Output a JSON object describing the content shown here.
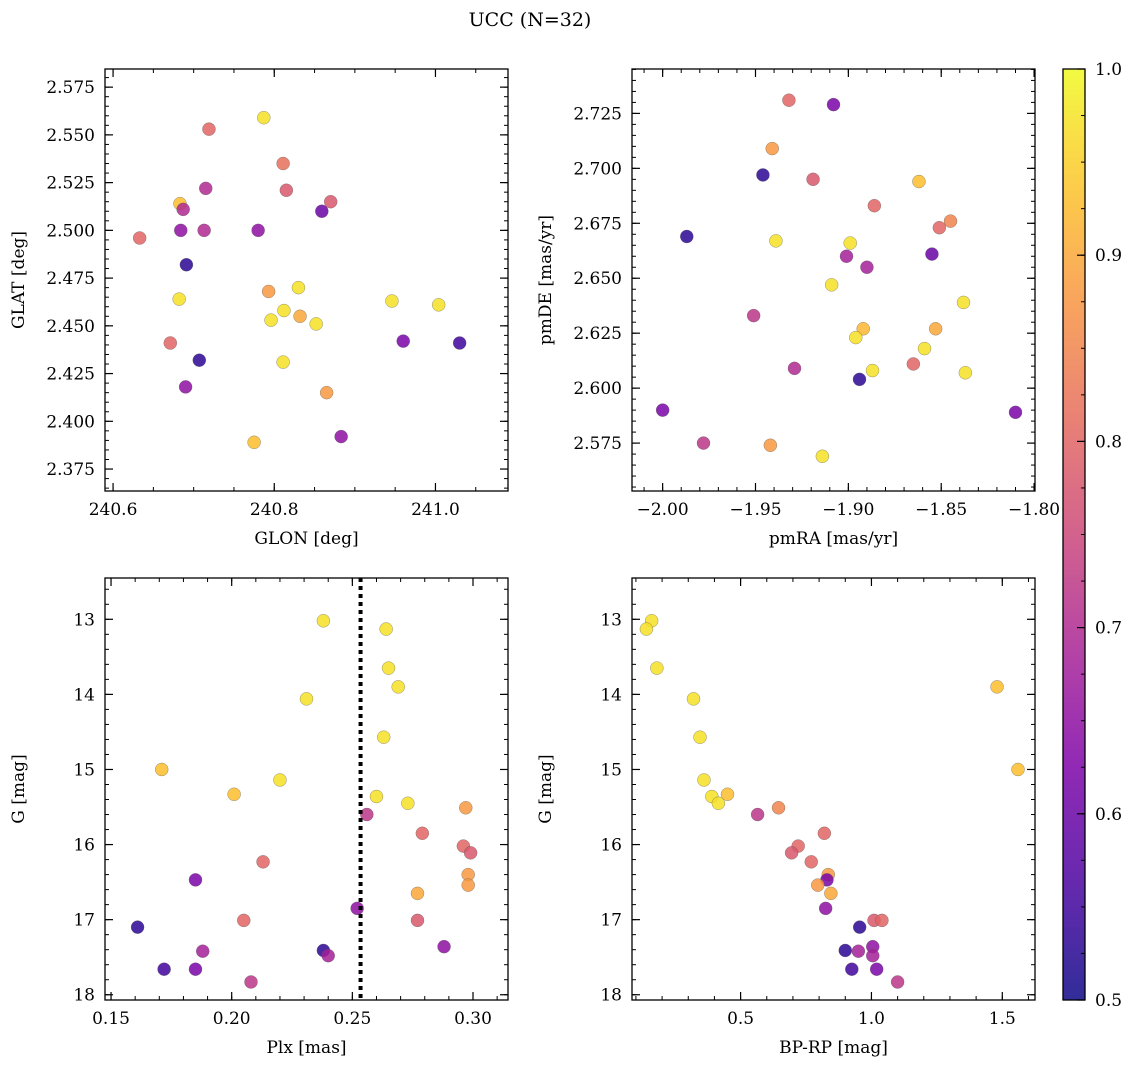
{
  "figure": {
    "title": "UCC (N=32)"
  },
  "colorbar": {
    "range": [
      0.5,
      1.0
    ],
    "ticks": [
      {
        "v": 0.5,
        "label": "0.5"
      },
      {
        "v": 0.6,
        "label": "0.6"
      },
      {
        "v": 0.7,
        "label": "0.7"
      },
      {
        "v": 0.8,
        "label": "0.8"
      },
      {
        "v": 0.9,
        "label": "0.9"
      },
      {
        "v": 1.0,
        "label": "1.0"
      }
    ],
    "colormap": "plasma"
  },
  "chart_data": [
    {
      "type": "scatter",
      "xlabel": "GLON [deg]",
      "ylabel": "GLAT [deg]",
      "xlim": [
        240.59,
        241.09
      ],
      "ylim": [
        2.3635,
        2.5845
      ],
      "xticks": [
        {
          "v": 240.6,
          "label": "240.6"
        },
        {
          "v": 240.8,
          "label": "240.8"
        },
        {
          "v": 241.0,
          "label": "241.0"
        }
      ],
      "yticks": [
        {
          "v": 2.375,
          "label": "2.375"
        },
        {
          "v": 2.4,
          "label": "2.400"
        },
        {
          "v": 2.425,
          "label": "2.425"
        },
        {
          "v": 2.45,
          "label": "2.450"
        },
        {
          "v": 2.475,
          "label": "2.475"
        },
        {
          "v": 2.5,
          "label": "2.500"
        },
        {
          "v": 2.525,
          "label": "2.525"
        },
        {
          "v": 2.55,
          "label": "2.550"
        },
        {
          "v": 2.575,
          "label": "2.575"
        }
      ],
      "points": [
        [
          240.719,
          2.553,
          0.8
        ],
        [
          240.787,
          2.559,
          0.97
        ],
        [
          240.811,
          2.535,
          0.82
        ],
        [
          240.715,
          2.522,
          0.7
        ],
        [
          240.815,
          2.521,
          0.78
        ],
        [
          240.683,
          2.514,
          0.93
        ],
        [
          240.687,
          2.511,
          0.7
        ],
        [
          240.859,
          2.51,
          0.6
        ],
        [
          240.87,
          2.515,
          0.78
        ],
        [
          240.633,
          2.496,
          0.8
        ],
        [
          240.684,
          2.5,
          0.65
        ],
        [
          240.713,
          2.5,
          0.7
        ],
        [
          240.78,
          2.5,
          0.65
        ],
        [
          240.691,
          2.482,
          0.53
        ],
        [
          240.682,
          2.464,
          0.97
        ],
        [
          240.793,
          2.468,
          0.88
        ],
        [
          240.83,
          2.47,
          0.97
        ],
        [
          240.812,
          2.458,
          0.97
        ],
        [
          240.796,
          2.453,
          0.97
        ],
        [
          240.832,
          2.455,
          0.9
        ],
        [
          240.852,
          2.451,
          0.97
        ],
        [
          240.946,
          2.463,
          0.97
        ],
        [
          241.004,
          2.461,
          0.97
        ],
        [
          240.671,
          2.441,
          0.8
        ],
        [
          240.707,
          2.432,
          0.53
        ],
        [
          240.811,
          2.431,
          0.97
        ],
        [
          240.96,
          2.442,
          0.62
        ],
        [
          241.03,
          2.441,
          0.55
        ],
        [
          240.69,
          2.418,
          0.65
        ],
        [
          240.865,
          2.415,
          0.88
        ],
        [
          240.883,
          2.392,
          0.65
        ],
        [
          240.775,
          2.389,
          0.93
        ]
      ]
    },
    {
      "type": "scatter",
      "xlabel": "pmRA [mas/yr]",
      "ylabel": "pmDE [mas/yr]",
      "xlim": [
        -2.0165,
        -1.7995
      ],
      "ylim": [
        2.5532,
        2.7452
      ],
      "xticks": [
        {
          "v": -2.0,
          "label": "−2.00"
        },
        {
          "v": -1.95,
          "label": "−1.95"
        },
        {
          "v": -1.9,
          "label": "−1.90"
        },
        {
          "v": -1.85,
          "label": "−1.85"
        },
        {
          "v": -1.8,
          "label": "−1.80"
        }
      ],
      "yticks": [
        {
          "v": 2.575,
          "label": "2.575"
        },
        {
          "v": 2.6,
          "label": "2.600"
        },
        {
          "v": 2.625,
          "label": "2.625"
        },
        {
          "v": 2.65,
          "label": "2.650"
        },
        {
          "v": 2.675,
          "label": "2.675"
        },
        {
          "v": 2.7,
          "label": "2.700"
        },
        {
          "v": 2.725,
          "label": "2.725"
        }
      ],
      "points": [
        [
          -1.932,
          2.731,
          0.8
        ],
        [
          -1.908,
          2.729,
          0.62
        ],
        [
          -1.941,
          2.709,
          0.88
        ],
        [
          -1.946,
          2.697,
          0.53
        ],
        [
          -1.919,
          2.695,
          0.78
        ],
        [
          -1.862,
          2.694,
          0.93
        ],
        [
          -1.886,
          2.683,
          0.8
        ],
        [
          -1.845,
          2.676,
          0.85
        ],
        [
          -1.851,
          2.673,
          0.8
        ],
        [
          -1.987,
          2.669,
          0.53
        ],
        [
          -1.939,
          2.667,
          0.97
        ],
        [
          -1.899,
          2.666,
          0.97
        ],
        [
          -1.855,
          2.661,
          0.6
        ],
        [
          -1.901,
          2.66,
          0.68
        ],
        [
          -1.89,
          2.655,
          0.68
        ],
        [
          -1.909,
          2.647,
          0.97
        ],
        [
          -1.838,
          2.639,
          0.97
        ],
        [
          -1.951,
          2.633,
          0.72
        ],
        [
          -1.892,
          2.627,
          0.92
        ],
        [
          -1.853,
          2.627,
          0.9
        ],
        [
          -1.896,
          2.623,
          0.97
        ],
        [
          -1.859,
          2.618,
          0.97
        ],
        [
          -1.865,
          2.611,
          0.8
        ],
        [
          -1.929,
          2.609,
          0.7
        ],
        [
          -1.887,
          2.608,
          0.97
        ],
        [
          -1.837,
          2.607,
          0.97
        ],
        [
          -1.894,
          2.604,
          0.53
        ],
        [
          -2.0,
          2.59,
          0.62
        ],
        [
          -1.81,
          2.589,
          0.62
        ],
        [
          -1.978,
          2.575,
          0.72
        ],
        [
          -1.942,
          2.574,
          0.88
        ],
        [
          -1.914,
          2.569,
          0.97
        ]
      ]
    },
    {
      "type": "scatter",
      "xlabel": "Plx [mas]",
      "ylabel": "G [mag]",
      "xlim": [
        0.1475,
        0.3145
      ],
      "ylim": [
        18.07,
        12.45
      ],
      "y_inverted": true,
      "vline": 0.2534,
      "xticks": [
        {
          "v": 0.15,
          "label": "0.15"
        },
        {
          "v": 0.2,
          "label": "0.20"
        },
        {
          "v": 0.25,
          "label": "0.25"
        },
        {
          "v": 0.3,
          "label": "0.30"
        }
      ],
      "yticks": [
        {
          "v": 13,
          "label": "13"
        },
        {
          "v": 14,
          "label": "14"
        },
        {
          "v": 15,
          "label": "15"
        },
        {
          "v": 16,
          "label": "16"
        },
        {
          "v": 17,
          "label": "17"
        },
        {
          "v": 18,
          "label": "18"
        }
      ],
      "points": [
        [
          0.238,
          13.02,
          0.97
        ],
        [
          0.264,
          13.13,
          0.97
        ],
        [
          0.265,
          13.65,
          0.97
        ],
        [
          0.269,
          13.9,
          0.97
        ],
        [
          0.231,
          14.06,
          0.97
        ],
        [
          0.263,
          14.57,
          0.97
        ],
        [
          0.171,
          15.0,
          0.93
        ],
        [
          0.22,
          15.14,
          0.97
        ],
        [
          0.201,
          15.33,
          0.93
        ],
        [
          0.26,
          15.36,
          0.97
        ],
        [
          0.273,
          15.45,
          0.97
        ],
        [
          0.297,
          15.51,
          0.88
        ],
        [
          0.256,
          15.6,
          0.72
        ],
        [
          0.279,
          15.85,
          0.8
        ],
        [
          0.296,
          16.02,
          0.8
        ],
        [
          0.299,
          16.11,
          0.78
        ],
        [
          0.213,
          16.23,
          0.8
        ],
        [
          0.298,
          16.4,
          0.88
        ],
        [
          0.298,
          16.54,
          0.88
        ],
        [
          0.185,
          16.47,
          0.62
        ],
        [
          0.277,
          16.65,
          0.9
        ],
        [
          0.252,
          16.85,
          0.65
        ],
        [
          0.205,
          17.01,
          0.8
        ],
        [
          0.277,
          17.01,
          0.78
        ],
        [
          0.161,
          17.1,
          0.53
        ],
        [
          0.288,
          17.36,
          0.65
        ],
        [
          0.188,
          17.42,
          0.68
        ],
        [
          0.238,
          17.41,
          0.53
        ],
        [
          0.24,
          17.48,
          0.68
        ],
        [
          0.172,
          17.66,
          0.55
        ],
        [
          0.185,
          17.66,
          0.62
        ],
        [
          0.208,
          17.83,
          0.72
        ]
      ]
    },
    {
      "type": "scatter",
      "xlabel": "BP-RP [mag]",
      "ylabel": "G [mag]",
      "xlim": [
        0.085,
        1.625
      ],
      "ylim": [
        18.07,
        12.45
      ],
      "y_inverted": true,
      "xticks": [
        {
          "v": 0.5,
          "label": "0.5"
        },
        {
          "v": 1.0,
          "label": "1.0"
        },
        {
          "v": 1.5,
          "label": "1.5"
        }
      ],
      "yticks": [
        {
          "v": 13,
          "label": "13"
        },
        {
          "v": 14,
          "label": "14"
        },
        {
          "v": 15,
          "label": "15"
        },
        {
          "v": 16,
          "label": "16"
        },
        {
          "v": 17,
          "label": "17"
        },
        {
          "v": 18,
          "label": "18"
        }
      ],
      "points": [
        [
          0.16,
          13.02,
          0.97
        ],
        [
          0.14,
          13.13,
          0.97
        ],
        [
          0.18,
          13.65,
          0.97
        ],
        [
          1.48,
          13.9,
          0.93
        ],
        [
          0.32,
          14.06,
          0.97
        ],
        [
          0.345,
          14.57,
          0.97
        ],
        [
          1.56,
          15.0,
          0.93
        ],
        [
          0.36,
          15.14,
          0.97
        ],
        [
          0.39,
          15.36,
          0.97
        ],
        [
          0.45,
          15.33,
          0.93
        ],
        [
          0.415,
          15.45,
          0.97
        ],
        [
          0.645,
          15.51,
          0.85
        ],
        [
          0.565,
          15.6,
          0.72
        ],
        [
          0.82,
          15.85,
          0.8
        ],
        [
          0.72,
          16.02,
          0.8
        ],
        [
          0.695,
          16.11,
          0.78
        ],
        [
          0.77,
          16.23,
          0.8
        ],
        [
          0.835,
          16.4,
          0.88
        ],
        [
          0.83,
          16.47,
          0.62
        ],
        [
          0.795,
          16.54,
          0.88
        ],
        [
          0.845,
          16.65,
          0.9
        ],
        [
          0.825,
          16.85,
          0.65
        ],
        [
          1.01,
          17.01,
          0.78
        ],
        [
          1.04,
          17.01,
          0.8
        ],
        [
          0.955,
          17.1,
          0.53
        ],
        [
          1.005,
          17.36,
          0.65
        ],
        [
          0.9,
          17.41,
          0.53
        ],
        [
          0.95,
          17.42,
          0.68
        ],
        [
          1.005,
          17.48,
          0.68
        ],
        [
          0.925,
          17.66,
          0.55
        ],
        [
          1.02,
          17.66,
          0.62
        ],
        [
          1.1,
          17.83,
          0.72
        ]
      ]
    }
  ]
}
